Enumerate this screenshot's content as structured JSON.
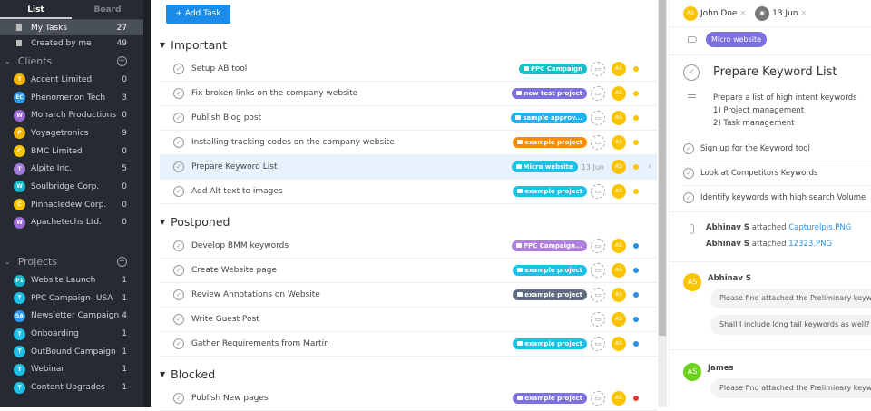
{
  "sidebar": {
    "tabs": [
      "List",
      "Board"
    ],
    "filters": [
      {
        "label": "My Tasks",
        "count": "27"
      },
      {
        "label": "Created by me",
        "count": "49"
      }
    ],
    "clients_title": "Clients",
    "clients": [
      {
        "initial": "T",
        "label": "Accent Limited",
        "count": "0",
        "color": "#f7b500"
      },
      {
        "initial": "EC",
        "label": "Phenomenon Tech",
        "count": "3",
        "color": "#2b9af3"
      },
      {
        "initial": "W",
        "label": "Monarch Productions",
        "count": "0",
        "color": "#9c6ad8"
      },
      {
        "initial": "P",
        "label": "Voyagetronics",
        "count": "9",
        "color": "#f7b500"
      },
      {
        "initial": "C",
        "label": "BMC Limited",
        "count": "0",
        "color": "#f7c600"
      },
      {
        "initial": "T",
        "label": "Alpite Inc.",
        "count": "5",
        "color": "#a27ad8"
      },
      {
        "initial": "W",
        "label": "Soulbridge Corp.",
        "count": "0",
        "color": "#16b6c8"
      },
      {
        "initial": "C",
        "label": "Pinnacledew Corp.",
        "count": "0",
        "color": "#f7c600"
      },
      {
        "initial": "W",
        "label": "Apachetechs Ltd.",
        "count": "0",
        "color": "#9c6ad8"
      }
    ],
    "projects_title": "Projects",
    "projects": [
      {
        "initial": "P1",
        "label": "Website Launch",
        "count": "1",
        "color": "#16b6c8"
      },
      {
        "initial": "T",
        "label": "PPC Campaign- USA",
        "count": "1",
        "color": "#1ec0e8"
      },
      {
        "initial": "SA",
        "label": "Newsletter Campaign",
        "count": "4",
        "color": "#2b9af3"
      },
      {
        "initial": "T",
        "label": "Onboarding",
        "count": "1",
        "color": "#1ec0e8"
      },
      {
        "initial": "T",
        "label": "OutBound Campaign",
        "count": "1",
        "color": "#1ec0e8"
      },
      {
        "initial": "T",
        "label": "Webinar",
        "count": "1",
        "color": "#1ec0e8"
      },
      {
        "initial": "T",
        "label": "Content Upgrades",
        "count": "1",
        "color": "#1ec0e8"
      }
    ]
  },
  "main": {
    "add_task": "+ Add Task",
    "sections": [
      {
        "title": "Important",
        "tasks": [
          {
            "title": "Setup AB tool",
            "tag": "PPC Campaign",
            "tag_color": "#17bfc9",
            "assignee": "AS",
            "dot": "#f7c600"
          },
          {
            "title": "Fix broken links on the company website",
            "tag": "new test project",
            "tag_color": "#7c6fe0",
            "assignee": "AS",
            "dot": "#f7c600"
          },
          {
            "title": "Publish Blog post",
            "tag": "sample approv...",
            "tag_color": "#1cb3f0",
            "assignee": "AS",
            "dot": "#f7c600"
          },
          {
            "title": "Installing tracking codes on the company website",
            "tag": "example project",
            "tag_color": "#ff8c00",
            "assignee": "AS",
            "dot": "#f7c600"
          },
          {
            "title": "Prepare Keyword List",
            "tag": "Micro website",
            "tag_color": "#1ec0e8",
            "date": "13 Jun",
            "assignee": "AS",
            "dot": "#f7c600",
            "selected": true
          },
          {
            "title": "Add Alt text to images",
            "tag": "example project",
            "tag_color": "#1ec0e8",
            "assignee": "AS",
            "dot": "#f7c600"
          }
        ]
      },
      {
        "title": "Postponed",
        "tasks": [
          {
            "title": "Develop BMM keywords",
            "tag": "PPC Campaign...",
            "tag_color": "#b07fe0",
            "assignee": "AS",
            "dot": "#2b8fe0"
          },
          {
            "title": "Create Website page",
            "tag": "example project",
            "tag_color": "#1ec0e8",
            "assignee": "AS",
            "dot": "#2b8fe0"
          },
          {
            "title": "Review Annotations on Website",
            "tag": "example project",
            "tag_color": "#5f6b7f",
            "assignee": "AS",
            "dot": "#2b8fe0"
          },
          {
            "title": "Write Guest Post",
            "tag": "",
            "tag_color": "",
            "assignee": "AS",
            "dot": "#2b8fe0"
          },
          {
            "title": "Gather Requirements from Martin",
            "tag": "example project",
            "tag_color": "#1ec0e8",
            "assignee": "AS",
            "dot": "#2b8fe0"
          }
        ]
      },
      {
        "title": "Blocked",
        "tasks": [
          {
            "title": "Publish New pages",
            "tag": "example project",
            "tag_color": "#7c6fe0",
            "assignee": "AS",
            "dot": "#e53935"
          }
        ]
      }
    ]
  },
  "detail": {
    "assignee_initials": "AS",
    "assignee": "John Doe",
    "due": "13 Jun",
    "tag": "Micro website",
    "title": "Prepare Keyword List",
    "description": [
      "Prepare a list of high intent keywords",
      "1) Project management",
      "2) Task management"
    ],
    "subtasks": [
      "Sign up for the Keyword tool",
      "Look at Competitors Keywords",
      "Identify keywords with high search Volume"
    ],
    "attachments": [
      {
        "user": "Abhinav S",
        "verb": "attached",
        "file": "Capturelpis.PNG"
      },
      {
        "user": "Abhinav S",
        "verb": "attached",
        "file": "12323.PNG"
      }
    ],
    "comments": [
      {
        "initials": "AS",
        "user": "Abhinav S",
        "color": "#fbc400",
        "messages": [
          "Please find attached the Preliminary keywords list",
          "Shall I include long tail keywords as well?"
        ]
      },
      {
        "initials": "AS",
        "user": "James",
        "color": "#6cd11b",
        "messages": [
          "Please find attached the Preliminary keywords list"
        ]
      }
    ]
  }
}
